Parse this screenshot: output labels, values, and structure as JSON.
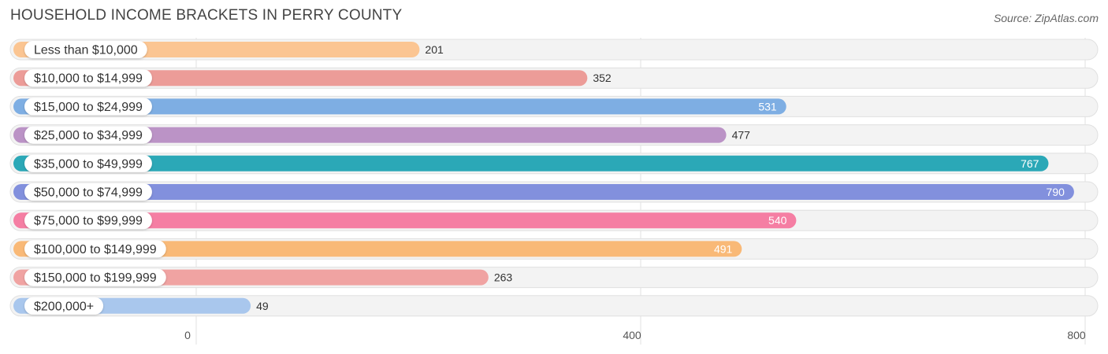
{
  "header": {
    "title": "HOUSEHOLD INCOME BRACKETS IN PERRY COUNTY",
    "source": "Source: ZipAtlas.com"
  },
  "chart_data": {
    "type": "bar",
    "orientation": "horizontal",
    "title": "HOUSEHOLD INCOME BRACKETS IN PERRY COUNTY",
    "categories": [
      "Less than $10,000",
      "$10,000 to $14,999",
      "$15,000 to $24,999",
      "$25,000 to $34,999",
      "$35,000 to $49,999",
      "$50,000 to $74,999",
      "$75,000 to $99,999",
      "$100,000 to $149,999",
      "$150,000 to $199,999",
      "$200,000+"
    ],
    "values": [
      201,
      352,
      531,
      477,
      767,
      790,
      540,
      491,
      263,
      49
    ],
    "colors": [
      "#fbc592",
      "#ec9c98",
      "#7eaee3",
      "#bb93c6",
      "#2ba8b7",
      "#8290dd",
      "#f57ea3",
      "#f9b977",
      "#f0a3a2",
      "#a9c7ed"
    ],
    "value_label_inside": [
      false,
      false,
      true,
      false,
      true,
      true,
      true,
      true,
      false,
      false
    ],
    "xlim": [
      0,
      800
    ],
    "xticks": [
      0,
      400,
      800
    ],
    "grid": true
  }
}
